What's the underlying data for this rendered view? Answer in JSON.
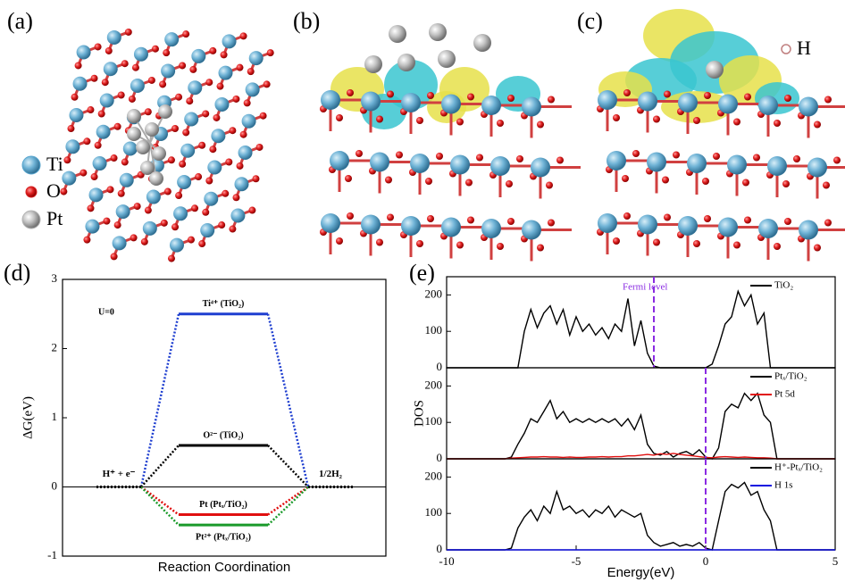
{
  "structures": [
    {
      "label": "(a)",
      "legend": [
        {
          "name": "Ti",
          "color": "#5aa7cf"
        },
        {
          "name": "O",
          "color": "#d62020"
        },
        {
          "name": "Pt",
          "color": "#b4b4b4"
        }
      ]
    },
    {
      "label": "(b)"
    },
    {
      "label": "(c)",
      "legend": [
        {
          "name": "H",
          "color": "#ffffff"
        }
      ]
    }
  ],
  "chart_data": [
    {
      "type": "energy_diagram",
      "label": "(d)",
      "annotation": "U=0",
      "ylabel": "ΔG(eV)",
      "xlabel": "Reaction Coordination",
      "categories": [
        "H⁺ + e⁻",
        null,
        "1/2H₂"
      ],
      "ylim": [
        -1,
        3
      ],
      "yticks": [
        -1,
        0,
        1,
        2,
        3
      ],
      "series": [
        {
          "name": "Ti⁴⁺ (TiO₂)",
          "color": "#1f3fd0",
          "values": [
            0,
            2.5,
            0
          ]
        },
        {
          "name": "O²⁻ (TiO₂)",
          "color": "#000000",
          "values": [
            0,
            0.6,
            0
          ]
        },
        {
          "name": "Pt (Ptₓ/TiO₂)",
          "color": "#e01010",
          "values": [
            0,
            -0.4,
            0
          ]
        },
        {
          "name": "Pt²⁺ (Ptₓ/TiO₂)",
          "color": "#1a9a2a",
          "values": [
            0,
            -0.55,
            0
          ]
        }
      ]
    },
    {
      "type": "line",
      "label": "(e)",
      "annotation": "Fermi level",
      "fermi_level": -2,
      "legend": "upper right",
      "x": [
        -10,
        -9.75,
        -9.5,
        -9.25,
        -9,
        -8.75,
        -8.5,
        -8.25,
        -8,
        -7.75,
        -7.5,
        -7.25,
        -7,
        -6.75,
        -6.5,
        -6.25,
        -6,
        -5.75,
        -5.5,
        -5.25,
        -5,
        -4.75,
        -4.5,
        -4.25,
        -4,
        -3.75,
        -3.5,
        -3.25,
        -3,
        -2.75,
        -2.5,
        -2.25,
        -2,
        -1.75,
        -1.5,
        -1.25,
        -1,
        -0.75,
        -0.5,
        -0.25,
        0,
        0.25,
        0.5,
        0.75,
        1,
        1.25,
        1.5,
        1.75,
        2,
        2.25,
        2.5,
        2.75,
        3,
        3.25,
        3.5,
        3.75,
        4,
        4.25,
        4.5,
        4.75,
        5
      ],
      "xlim": [
        -10,
        5
      ],
      "ylim": [
        0,
        250
      ],
      "yticks": [
        0,
        100,
        200
      ],
      "series": [
        {
          "name": "TiO₂",
          "color": "#000000",
          "values": [
            0,
            0,
            0,
            0,
            0,
            0,
            0,
            0,
            0,
            0,
            0,
            0,
            100,
            160,
            110,
            150,
            170,
            120,
            160,
            90,
            140,
            100,
            120,
            90,
            110,
            80,
            120,
            100,
            190,
            60,
            130,
            40,
            5,
            0,
            0,
            0,
            0,
            0,
            0,
            0,
            0,
            10,
            60,
            120,
            140,
            210,
            170,
            200,
            120,
            150,
            0,
            0,
            0,
            0,
            0,
            0,
            0,
            0,
            0,
            0,
            0
          ]
        }
      ]
    },
    {
      "type": "line",
      "fermi_level": 0,
      "ylabel": "DOS",
      "legend": "upper right",
      "x": [
        -10,
        -9.75,
        -9.5,
        -9.25,
        -9,
        -8.75,
        -8.5,
        -8.25,
        -8,
        -7.75,
        -7.5,
        -7.25,
        -7,
        -6.75,
        -6.5,
        -6.25,
        -6,
        -5.75,
        -5.5,
        -5.25,
        -5,
        -4.75,
        -4.5,
        -4.25,
        -4,
        -3.75,
        -3.5,
        -3.25,
        -3,
        -2.75,
        -2.5,
        -2.25,
        -2,
        -1.75,
        -1.5,
        -1.25,
        -1,
        -0.75,
        -0.5,
        -0.25,
        0,
        0.25,
        0.5,
        0.75,
        1,
        1.25,
        1.5,
        1.75,
        2,
        2.25,
        2.5,
        2.75,
        3,
        3.25,
        3.5,
        3.75,
        4,
        4.25,
        4.5,
        4.75,
        5
      ],
      "xlim": [
        -10,
        5
      ],
      "ylim": [
        0,
        250
      ],
      "yticks": [
        0,
        100,
        200
      ],
      "series": [
        {
          "name": "Ptₓ/TiO₂",
          "color": "#000000",
          "values": [
            0,
            0,
            0,
            0,
            0,
            0,
            0,
            0,
            0,
            0,
            5,
            40,
            70,
            110,
            100,
            130,
            160,
            110,
            130,
            100,
            110,
            100,
            110,
            100,
            110,
            100,
            110,
            90,
            110,
            80,
            120,
            40,
            15,
            10,
            20,
            5,
            15,
            20,
            10,
            25,
            5,
            0,
            30,
            130,
            150,
            140,
            180,
            160,
            180,
            120,
            100,
            0,
            0,
            0,
            0,
            0,
            0,
            0,
            0,
            0,
            0
          ]
        },
        {
          "name": "Pt 5d",
          "color": "#e01010",
          "values": [
            0,
            0,
            0,
            0,
            0,
            0,
            0,
            0,
            0,
            0,
            2,
            3,
            4,
            5,
            5,
            6,
            5,
            5,
            4,
            5,
            4,
            4,
            5,
            5,
            6,
            5,
            6,
            6,
            8,
            8,
            10,
            12,
            10,
            14,
            12,
            15,
            12,
            10,
            8,
            6,
            4,
            3,
            5,
            6,
            5,
            4,
            5,
            4,
            3,
            3,
            2,
            0,
            0,
            0,
            0,
            0,
            0,
            0,
            0,
            0,
            0
          ]
        }
      ]
    },
    {
      "type": "line",
      "fermi_level": 0,
      "xlabel": "Energy(eV)",
      "legend": "upper right",
      "x": [
        -10,
        -9.75,
        -9.5,
        -9.25,
        -9,
        -8.75,
        -8.5,
        -8.25,
        -8,
        -7.75,
        -7.5,
        -7.25,
        -7,
        -6.75,
        -6.5,
        -6.25,
        -6,
        -5.75,
        -5.5,
        -5.25,
        -5,
        -4.75,
        -4.5,
        -4.25,
        -4,
        -3.75,
        -3.5,
        -3.25,
        -3,
        -2.75,
        -2.5,
        -2.25,
        -2,
        -1.75,
        -1.5,
        -1.25,
        -1,
        -0.75,
        -0.5,
        -0.25,
        0,
        0.25,
        0.5,
        0.75,
        1,
        1.25,
        1.5,
        1.75,
        2,
        2.25,
        2.5,
        2.75,
        3,
        3.25,
        3.5,
        3.75,
        4,
        4.25,
        4.5,
        4.75,
        5
      ],
      "xlim": [
        -10,
        5
      ],
      "xticks": [
        -10,
        -5,
        0,
        5
      ],
      "ylim": [
        0,
        250
      ],
      "yticks": [
        0,
        100,
        200
      ],
      "series": [
        {
          "name": "H⁺-Ptₓ/TiO₂",
          "color": "#000000",
          "values": [
            0,
            0,
            0,
            0,
            0,
            0,
            0,
            0,
            0,
            0,
            5,
            60,
            90,
            110,
            80,
            120,
            100,
            160,
            110,
            120,
            100,
            110,
            90,
            110,
            100,
            120,
            90,
            110,
            100,
            90,
            100,
            40,
            20,
            10,
            15,
            20,
            10,
            15,
            10,
            20,
            5,
            0,
            80,
            160,
            180,
            170,
            185,
            150,
            160,
            110,
            80,
            0,
            0,
            0,
            0,
            0,
            0,
            0,
            0,
            0,
            0
          ]
        },
        {
          "name": "H 1s",
          "color": "#1010e0",
          "values": [
            0,
            0,
            0,
            0,
            0,
            0,
            0,
            0,
            0,
            0,
            0,
            0,
            0,
            0,
            0,
            0,
            0,
            0,
            0,
            0,
            0,
            0,
            0,
            0,
            0,
            0,
            0,
            0,
            0,
            0,
            0,
            0,
            0,
            0,
            0,
            0,
            0,
            0,
            0,
            0,
            0,
            0,
            0,
            0,
            0,
            0,
            0,
            0,
            0,
            0,
            0,
            0,
            0,
            0,
            0,
            0,
            0,
            0,
            0,
            0,
            0
          ]
        }
      ]
    }
  ]
}
